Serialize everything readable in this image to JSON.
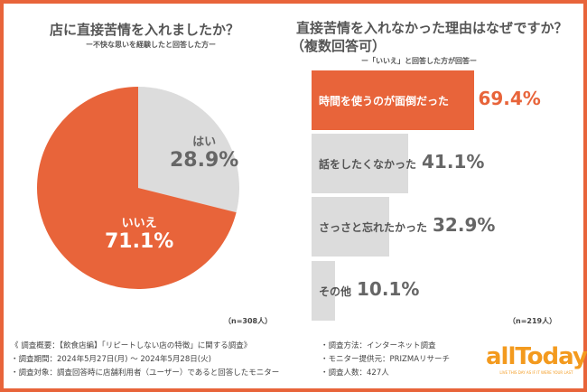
{
  "colors": {
    "accent": "#e8643a",
    "gray": "#dcdcdc",
    "logo": "#f39a1e"
  },
  "left": {
    "title": "店に直接苦情を入れましたか？",
    "subtitle": "ー不快な思いを経験したと回答した方ー",
    "n": "（n=308人）"
  },
  "right": {
    "title_line1": "直接苦情を入れなかった理由はなぜですか？",
    "title_line2": "（複数回答可）",
    "subtitle": "ー「いいえ」と回答した方が回答ー",
    "n": "（n=219人）"
  },
  "chart_data": [
    {
      "type": "pie",
      "title": "店に直接苦情を入れましたか？",
      "categories": [
        "はい",
        "いいえ"
      ],
      "values": [
        28.9,
        71.1
      ],
      "labels": [
        "28.9%",
        "71.1%"
      ],
      "colors": [
        "#dcdcdc",
        "#e8643a"
      ]
    },
    {
      "type": "bar",
      "orientation": "horizontal",
      "title": "直接苦情を入れなかった理由はなぜですか？（複数回答可）",
      "categories": [
        "時間を使うのが面倒だった",
        "話をしたくなかった",
        "さっさと忘れたかった",
        "その他"
      ],
      "values": [
        69.4,
        41.1,
        32.9,
        10.1
      ],
      "labels": [
        "69.4%",
        "41.1%",
        "32.9%",
        "10.1%"
      ]
    }
  ],
  "footer": {
    "left": [
      "《 調査概要：【飲食店編】「リピートしない店の特徴」に関する調査》",
      "・調査期間：2024年5月27日(月) ～ 2024年5月28日(火)",
      "・調査対象：調査回答時に店舗利用者（ユーザー）であると回答したモニター"
    ],
    "right": [
      "・調査方法：インターネット調査",
      "・モニター提供元：PRIZMAリサーチ",
      "・調査人数：427人"
    ]
  },
  "logo": {
    "text": "allToday",
    "tagline": "LIVE THIS DAY AS IF IT WERE YOUR LAST"
  }
}
